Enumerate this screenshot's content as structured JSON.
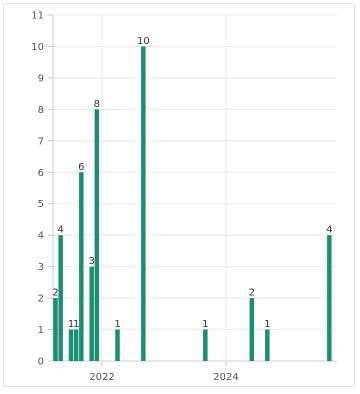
{
  "chart_data": {
    "type": "bar",
    "title": "",
    "xlabel": "",
    "ylabel": "",
    "ylim": [
      0,
      11
    ],
    "yticks": [
      0,
      1,
      2,
      3,
      4,
      5,
      6,
      7,
      8,
      9,
      10,
      11
    ],
    "xticks": [
      "2022",
      "2024"
    ],
    "grid": true,
    "legend": "none",
    "bar_color": "#1a8f72",
    "bars": [
      {
        "date": "2021-04",
        "value": 2
      },
      {
        "date": "2021-05",
        "value": 4
      },
      {
        "date": "2021-07",
        "value": 1
      },
      {
        "date": "2021-08",
        "value": 1
      },
      {
        "date": "2021-09",
        "value": 6
      },
      {
        "date": "2021-11",
        "value": 3
      },
      {
        "date": "2021-12",
        "value": 8
      },
      {
        "date": "2022-04",
        "value": 1
      },
      {
        "date": "2022-09",
        "value": 10
      },
      {
        "date": "2023-09",
        "value": 1
      },
      {
        "date": "2024-06",
        "value": 2
      },
      {
        "date": "2024-09",
        "value": 1
      },
      {
        "date": "2025-09",
        "value": 4
      }
    ]
  }
}
